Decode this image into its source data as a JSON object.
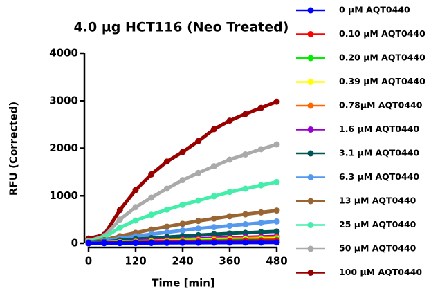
{
  "chart_data": {
    "type": "line",
    "title": "4.0 µg HCT116 (Neo Treated)",
    "x_label": "Time [min]",
    "y_label": "RFU (Corrected)",
    "x": [
      0,
      40,
      80,
      120,
      160,
      200,
      240,
      280,
      320,
      360,
      400,
      440,
      480
    ],
    "xlim": [
      0,
      480
    ],
    "xticks": [
      0,
      120,
      240,
      360,
      480
    ],
    "ylim": [
      0,
      4000
    ],
    "yticks": [
      0,
      1000,
      2000,
      3000,
      4000
    ],
    "series": [
      {
        "name": "0 µM AQT0440",
        "color": "#0000ff",
        "values": [
          0,
          2,
          4,
          6,
          8,
          10,
          12,
          13,
          14,
          15,
          16,
          17,
          18
        ]
      },
      {
        "name": "0.10 µM AQT0440",
        "color": "#ff0000",
        "values": [
          0,
          5,
          10,
          15,
          20,
          25,
          30,
          35,
          40,
          45,
          50,
          55,
          60
        ]
      },
      {
        "name": "0.20 µM AQT0440",
        "color": "#00ee00",
        "values": [
          0,
          8,
          15,
          22,
          30,
          36,
          42,
          48,
          54,
          60,
          66,
          72,
          78
        ]
      },
      {
        "name": "0.39 µM AQT0440",
        "color": "#ffff00",
        "values": [
          0,
          10,
          20,
          30,
          38,
          45,
          52,
          60,
          68,
          75,
          82,
          90,
          98
        ]
      },
      {
        "name": "0.78µM AQT0440",
        "color": "#ff6600",
        "values": [
          0,
          12,
          25,
          35,
          45,
          55,
          65,
          75,
          85,
          95,
          100,
          110,
          120
        ]
      },
      {
        "name": "1.6 µM AQT0440",
        "color": "#9900cc",
        "values": [
          0,
          15,
          30,
          45,
          60,
          70,
          80,
          95,
          105,
          115,
          125,
          135,
          145
        ]
      },
      {
        "name": "3.1 µM AQT0440",
        "color": "#005555",
        "values": [
          5,
          30,
          60,
          85,
          110,
          130,
          150,
          170,
          190,
          205,
          220,
          235,
          250
        ]
      },
      {
        "name": "6.3 µM AQT0440",
        "color": "#5599ee",
        "values": [
          10,
          50,
          100,
          150,
          190,
          230,
          270,
          310,
          340,
          370,
          400,
          430,
          460
        ]
      },
      {
        "name": "13 µM AQT0440",
        "color": "#996633",
        "values": [
          20,
          70,
          150,
          220,
          290,
          350,
          410,
          470,
          520,
          570,
          610,
          650,
          690
        ]
      },
      {
        "name": "25 µM AQT0440",
        "color": "#44eeaa",
        "values": [
          30,
          120,
          330,
          480,
          600,
          710,
          810,
          900,
          990,
          1080,
          1150,
          1220,
          1290
        ]
      },
      {
        "name": "50 µM AQT0440",
        "color": "#aaaaaa",
        "values": [
          50,
          150,
          500,
          760,
          960,
          1150,
          1330,
          1480,
          1620,
          1760,
          1870,
          1980,
          2080
        ]
      },
      {
        "name": "100 µM AQT0440",
        "color": "#990000",
        "values": [
          100,
          180,
          700,
          1120,
          1450,
          1720,
          1920,
          2150,
          2400,
          2580,
          2720,
          2850,
          2980
        ]
      }
    ]
  }
}
